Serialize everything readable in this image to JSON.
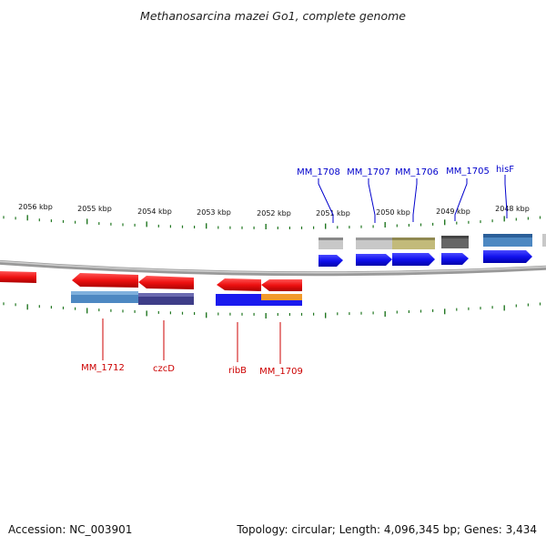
{
  "title": "Methanosarcina mazei Go1, complete genome",
  "footer": {
    "accession": "Accession: NC_003901",
    "stats": "Topology: circular; Length: 4,096,345 bp; Genes: 3,434"
  },
  "ruler_labels": [
    "2056 kbp",
    "2055 kbp",
    "2054 kbp",
    "2053 kbp",
    "2052 kbp",
    "2051 kbp",
    "2050 kbp",
    "2049 kbp",
    "2048 kbp"
  ],
  "forward_gene_labels": [
    "MM_1708",
    "MM_1707",
    "MM_1706",
    "MM_1705",
    "hisF"
  ],
  "reverse_gene_labels": [
    "MM_1712",
    "czcD",
    "ribB",
    "MM_1709"
  ],
  "colors": {
    "forward_genes": "#1a1aff",
    "reverse_genes": "#ee1111",
    "forward_label": "#0000cc",
    "reverse_label": "#cc0000",
    "ticks": "#227722",
    "backbone": "#888888"
  }
}
